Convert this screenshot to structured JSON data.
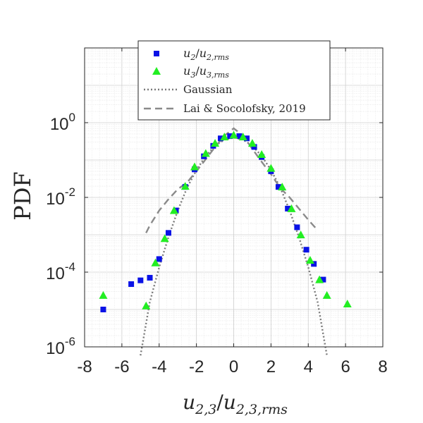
{
  "chart_data": {
    "type": "scatter",
    "title": "",
    "xlabel_base": "u",
    "xlabel_sub_num": "2,3",
    "xlabel_den": "u",
    "xlabel_sub_den": "2,3,rms",
    "ylabel": "PDF",
    "xlim": [
      -8,
      8
    ],
    "ylim_log10": [
      -6,
      2
    ],
    "x_ticks": [
      -8,
      -6,
      -4,
      -2,
      0,
      2,
      4,
      6,
      8
    ],
    "x_tick_labels": [
      "-8",
      "-6",
      "-4",
      "-2",
      "0",
      "2",
      "4",
      "6",
      "8"
    ],
    "y_tick_exponents": [
      -6,
      -4,
      -2,
      0
    ],
    "y_tick_base": "10",
    "y_tick_exp_labels": [
      "-6",
      "-4",
      "-2",
      "0"
    ],
    "grid": true,
    "legend_position": "top",
    "series": [
      {
        "name": "u2/u2,rms",
        "legend_math": {
          "base": "u",
          "sub": "2",
          "den_base": "u",
          "den_sub": "2,rms"
        },
        "marker": "square",
        "color": "#0a12e6",
        "x": [
          -7,
          -5.5,
          -5.0,
          -4.5,
          -4.0,
          -3.5,
          -3.1,
          -2.6,
          -2.1,
          -1.6,
          -1.1,
          -0.7,
          -0.2,
          0.3,
          0.7,
          1.1,
          1.5,
          2.0,
          2.4,
          2.9,
          3.4,
          3.9,
          4.3,
          4.8
        ],
        "log10_y": [
          -5.0,
          -4.32,
          -4.22,
          -4.15,
          -3.65,
          -2.95,
          -2.35,
          -1.72,
          -1.25,
          -0.9,
          -0.62,
          -0.42,
          -0.36,
          -0.36,
          -0.42,
          -0.65,
          -0.92,
          -1.3,
          -1.72,
          -2.3,
          -2.8,
          -3.4,
          -3.78,
          -4.2
        ]
      },
      {
        "name": "u3/u3,rms",
        "legend_math": {
          "base": "u",
          "sub": "3",
          "den_base": "u",
          "den_sub": "3,rms"
        },
        "marker": "triangle",
        "color": "#22ee22",
        "x": [
          -7,
          -4.7,
          -4.2,
          -3.7,
          -3.2,
          -2.6,
          -2.1,
          -1.5,
          -1.0,
          -0.5,
          0,
          0.5,
          1.0,
          1.5,
          2.0,
          2.6,
          3.1,
          3.6,
          4.1,
          4.6,
          5.0,
          6.1
        ],
        "log10_y": [
          -4.62,
          -4.9,
          -3.75,
          -3.1,
          -2.35,
          -1.7,
          -1.18,
          -0.82,
          -0.55,
          -0.38,
          -0.33,
          -0.38,
          -0.55,
          -0.85,
          -1.22,
          -1.72,
          -2.3,
          -3.0,
          -3.68,
          -4.2,
          -4.62,
          -4.85
        ]
      },
      {
        "name": "Gaussian",
        "style": "dotted",
        "color": "#7a7a7a",
        "x": [
          -5,
          -4.5,
          -4,
          -3.5,
          -3,
          -2.5,
          -2,
          -1.5,
          -1,
          -0.5,
          0,
          0.5,
          1,
          1.5,
          2,
          2.5,
          3,
          3.5,
          4,
          4.5,
          5
        ],
        "log10_y": [
          -6.23,
          -4.8,
          -3.87,
          -3.06,
          -2.35,
          -1.74,
          -1.27,
          -0.89,
          -0.62,
          -0.45,
          -0.4,
          -0.45,
          -0.62,
          -0.89,
          -1.27,
          -1.74,
          -2.35,
          -3.06,
          -3.87,
          -4.8,
          -6.23
        ]
      },
      {
        "name": "Lai & Socolofsky, 2019",
        "style": "dashed",
        "color": "#8a8a8a",
        "x": [
          -4.7,
          -4.5,
          -4,
          -3.5,
          -3,
          -2.5,
          -2,
          -1.5,
          -1,
          -0.5,
          0,
          0.5,
          1,
          1.5,
          2,
          2.5,
          3,
          3.5,
          4,
          4.5
        ],
        "log10_y": [
          -2.95,
          -2.75,
          -2.35,
          -2.05,
          -1.78,
          -1.6,
          -1.3,
          -0.98,
          -0.65,
          -0.35,
          -0.15,
          -0.35,
          -0.7,
          -1.05,
          -1.38,
          -1.75,
          -2.0,
          -2.3,
          -2.6,
          -2.88
        ]
      }
    ]
  }
}
